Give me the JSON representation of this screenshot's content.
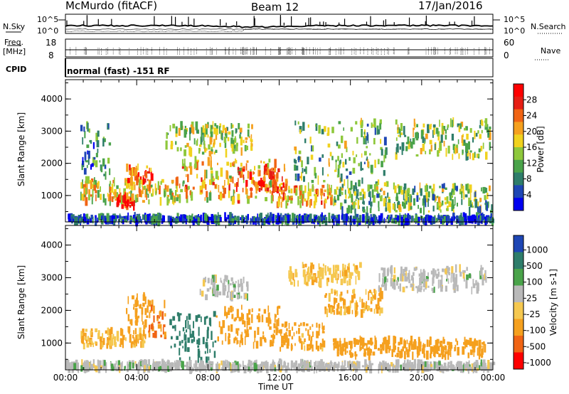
{
  "header": {
    "station": "McMurdo (fitACF)",
    "beam": "Beam 12",
    "date": "17/Jan/2016"
  },
  "noise_panel": {
    "left_label": "N.Sky",
    "right_label": "N.Search",
    "left_ticks": [
      "10^5",
      "10^0"
    ],
    "right_ticks": [
      "10^5",
      "10^0"
    ]
  },
  "freq_panel": {
    "left_label_line1": "Freq.",
    "left_label_line2": "[MHz]",
    "right_label": "Nave",
    "left_ticks": [
      "18",
      "8"
    ],
    "right_ticks": [
      "60",
      "0"
    ]
  },
  "cpid_panel": {
    "label": "CPID",
    "text": "normal (fast) -151 RF"
  },
  "x_axis": {
    "label": "Time UT",
    "ticks": [
      "00:00",
      "04:00",
      "08:00",
      "12:00",
      "16:00",
      "20:00",
      "00:00"
    ]
  },
  "chart_data": [
    {
      "type": "heatmap",
      "name": "power",
      "xlabel": "Time UT",
      "ylabel": "Slant Range [km]",
      "yticks": [
        "1000",
        "2000",
        "3000",
        "4000"
      ],
      "ylim": [
        180,
        4600
      ],
      "xlim_hours": [
        0,
        24
      ],
      "colorbar_label": "Power [dB]",
      "colorbar_ticks": [
        "4",
        "8",
        "12",
        "16",
        "20",
        "24",
        "28"
      ],
      "colorbar_colors": [
        "#0000f0",
        "#1e46b4",
        "#2e7d6a",
        "#4aa34a",
        "#8ec83c",
        "#f0d21e",
        "#f5a01e",
        "#f06414",
        "#e61e14",
        "#ff0000"
      ],
      "regions": [
        {
          "t": [
            0.8,
            6.6
          ],
          "r": [
            800,
            1500
          ],
          "level": 0.55
        },
        {
          "t": [
            2.8,
            3.8
          ],
          "r": [
            650,
            1000
          ],
          "level": 0.9
        },
        {
          "t": [
            3.4,
            4.8
          ],
          "r": [
            1400,
            1900
          ],
          "level": 0.75
        },
        {
          "t": [
            6.5,
            11.8
          ],
          "r": [
            800,
            2100
          ],
          "level": 0.6
        },
        {
          "t": [
            9.5,
            12.4
          ],
          "r": [
            1100,
            1900
          ],
          "level": 0.8
        },
        {
          "t": [
            11.8,
            15.0
          ],
          "r": [
            700,
            1300
          ],
          "level": 0.65
        },
        {
          "t": [
            5.6,
            10.5
          ],
          "r": [
            2300,
            3200
          ],
          "level": 0.45
        },
        {
          "t": [
            12.8,
            18.0
          ],
          "r": [
            1300,
            3300
          ],
          "level": 0.4
        },
        {
          "t": [
            18.5,
            23.8
          ],
          "r": [
            2200,
            3300
          ],
          "level": 0.45
        },
        {
          "t": [
            15.0,
            23.9
          ],
          "r": [
            500,
            1300
          ],
          "level": 0.4
        },
        {
          "t": [
            0.8,
            2.5
          ],
          "r": [
            1600,
            3200
          ],
          "level": 0.25
        },
        {
          "t": [
            0.0,
            24.0
          ],
          "r": [
            180,
            350
          ],
          "level": 0.15
        }
      ]
    },
    {
      "type": "heatmap",
      "name": "velocity",
      "xlabel": "Time UT",
      "ylabel": "Slant Range [km]",
      "yticks": [
        "1000",
        "2000",
        "3000",
        "4000"
      ],
      "ylim": [
        180,
        4600
      ],
      "xlim_hours": [
        0,
        24
      ],
      "colorbar_label": "Velocity [m s-1]",
      "colorbar_ticks": [
        "1000",
        "500",
        "100",
        "25",
        "-25",
        "-100",
        "-500",
        "-1000"
      ],
      "colorbar_colors": [
        "#1e46b4",
        "#2e7d6a",
        "#4aa34a",
        "#b9b9b9",
        "#f5c850",
        "#f5a01e",
        "#f06414",
        "#ff0000"
      ],
      "regions": [
        {
          "t": [
            0.8,
            4.5
          ],
          "r": [
            900,
            1400
          ],
          "vel": -100
        },
        {
          "t": [
            3.2,
            4.9
          ],
          "r": [
            1400,
            2500
          ],
          "vel": -300
        },
        {
          "t": [
            4.6,
            5.6
          ],
          "r": [
            1100,
            2200
          ],
          "vel": -600
        },
        {
          "t": [
            5.8,
            8.4
          ],
          "r": [
            450,
            1900
          ],
          "vel": 300
        },
        {
          "t": [
            8.4,
            12.0
          ],
          "r": [
            900,
            2100
          ],
          "vel": -200
        },
        {
          "t": [
            12.0,
            14.5
          ],
          "r": [
            800,
            1600
          ],
          "vel": -150
        },
        {
          "t": [
            14.5,
            17.8
          ],
          "r": [
            1900,
            2600
          ],
          "vel": -120
        },
        {
          "t": [
            17.5,
            23.6
          ],
          "r": [
            2600,
            3300
          ],
          "vel": 0
        },
        {
          "t": [
            12.5,
            16.5
          ],
          "r": [
            2800,
            3400
          ],
          "vel": -80
        },
        {
          "t": [
            15.0,
            23.5
          ],
          "r": [
            600,
            1100
          ],
          "vel": -250
        },
        {
          "t": [
            7.5,
            10.2
          ],
          "r": [
            2400,
            3000
          ],
          "vel": 0
        },
        {
          "t": [
            0.0,
            24.0
          ],
          "r": [
            180,
            400
          ],
          "vel": 0
        }
      ]
    }
  ]
}
